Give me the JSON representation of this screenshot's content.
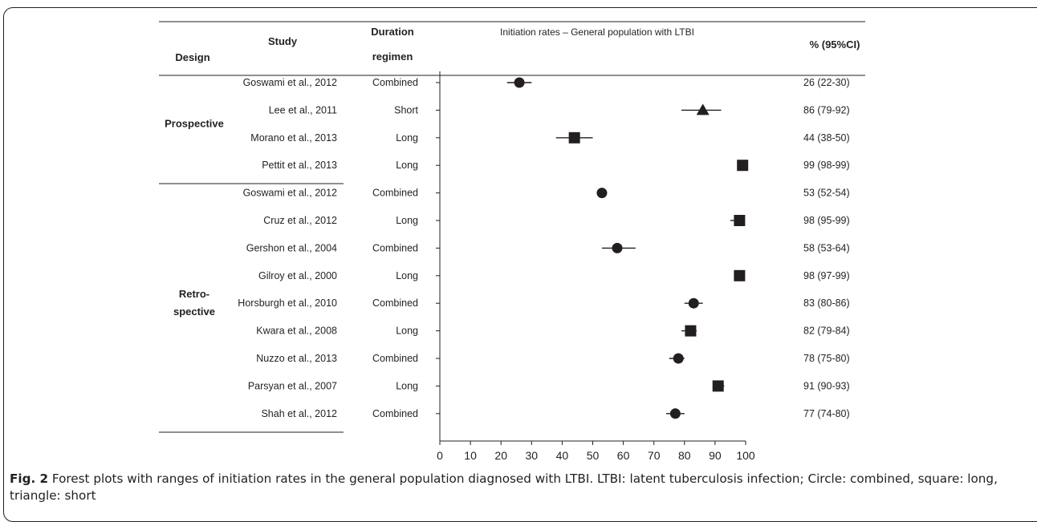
{
  "chart_data": {
    "type": "forest",
    "title": "Initiation rates – General population with LTBI",
    "headers": {
      "design": "Design",
      "study": "Study",
      "duration_line1": "Duration",
      "duration_line2": "regimen",
      "ci": "% (95%CI)"
    },
    "groups": [
      {
        "label_lines": [
          "Prospective"
        ],
        "rows": [
          0,
          1,
          2,
          3
        ]
      },
      {
        "label_lines": [
          "Retro-",
          "spective"
        ],
        "rows": [
          4,
          5,
          6,
          7,
          8,
          9,
          10,
          11,
          12
        ]
      }
    ],
    "xlim": [
      0,
      100
    ],
    "xticks": [
      0,
      10,
      20,
      30,
      40,
      50,
      60,
      70,
      80,
      90,
      100
    ],
    "xtick_labels": [
      "0",
      "10",
      "20",
      "30",
      "40",
      "50",
      "60",
      "70",
      "80",
      "90",
      "100"
    ],
    "legend": {
      "Combined": "circle",
      "Long": "square",
      "Short": "triangle"
    },
    "rows": [
      {
        "study": "Goswami et al., 2012",
        "regimen": "Combined",
        "estimate": 26,
        "lower": 22,
        "upper": 30,
        "ci_text": "26 (22-30)"
      },
      {
        "study": "Lee et al., 2011",
        "regimen": "Short",
        "estimate": 86,
        "lower": 79,
        "upper": 92,
        "ci_text": "86 (79-92)"
      },
      {
        "study": "Morano et al., 2013",
        "regimen": "Long",
        "estimate": 44,
        "lower": 38,
        "upper": 50,
        "ci_text": "44 (38-50)"
      },
      {
        "study": "Pettit et al., 2013",
        "regimen": "Long",
        "estimate": 99,
        "lower": 98,
        "upper": 99,
        "ci_text": "99 (98-99)"
      },
      {
        "study": "Goswami et al., 2012",
        "regimen": "Combined",
        "estimate": 53,
        "lower": 52,
        "upper": 54,
        "ci_text": "53 (52-54)"
      },
      {
        "study": "Cruz et al., 2012",
        "regimen": "Long",
        "estimate": 98,
        "lower": 95,
        "upper": 99,
        "ci_text": "98 (95-99)"
      },
      {
        "study": "Gershon et al., 2004",
        "regimen": "Combined",
        "estimate": 58,
        "lower": 53,
        "upper": 64,
        "ci_text": "58 (53-64)"
      },
      {
        "study": "Gilroy et al., 2000",
        "regimen": "Long",
        "estimate": 98,
        "lower": 97,
        "upper": 99,
        "ci_text": "98 (97-99)"
      },
      {
        "study": "Horsburgh et al., 2010",
        "regimen": "Combined",
        "estimate": 83,
        "lower": 80,
        "upper": 86,
        "ci_text": "83 (80-86)"
      },
      {
        "study": "Kwara et al., 2008",
        "regimen": "Long",
        "estimate": 82,
        "lower": 79,
        "upper": 84,
        "ci_text": "82 (79-84)"
      },
      {
        "study": "Nuzzo et al., 2013",
        "regimen": "Combined",
        "estimate": 78,
        "lower": 75,
        "upper": 80,
        "ci_text": "78 (75-80)"
      },
      {
        "study": "Parsyan et al., 2007",
        "regimen": "Long",
        "estimate": 91,
        "lower": 90,
        "upper": 93,
        "ci_text": "91 (90-93)"
      },
      {
        "study": "Shah et al., 2012",
        "regimen": "Combined",
        "estimate": 77,
        "lower": 74,
        "upper": 80,
        "ci_text": "77 (74-80)"
      }
    ],
    "colors": {
      "ink": "#231f20"
    }
  },
  "caption": {
    "label": "Fig. 2",
    "text": " Forest plots with ranges of initiation rates in the general population diagnosed with LTBI. LTBI: latent tuberculosis infection; Circle: combined, square: long, triangle: short"
  }
}
